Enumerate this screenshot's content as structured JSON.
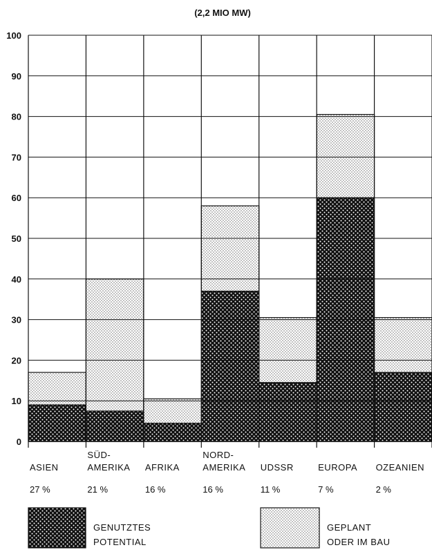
{
  "chart_data": {
    "type": "bar",
    "subtitle": "(2,2 MIO MW)",
    "ylim": [
      0,
      100
    ],
    "y_ticks": [
      0,
      10,
      20,
      30,
      40,
      50,
      60,
      70,
      80,
      90,
      100
    ],
    "grid": true,
    "stacked": true,
    "categories": [
      {
        "name_lines": [
          "ASIEN"
        ],
        "share": "27 %"
      },
      {
        "name_lines": [
          "SÜD-",
          "AMERIKA"
        ],
        "share": "21 %"
      },
      {
        "name_lines": [
          "AFRIKA"
        ],
        "share": "16 %"
      },
      {
        "name_lines": [
          "NORD-",
          "AMERIKA"
        ],
        "share": "16 %"
      },
      {
        "name_lines": [
          "UDSSR"
        ],
        "share": "11 %"
      },
      {
        "name_lines": [
          "EUROPA"
        ],
        "share": "7 %"
      },
      {
        "name_lines": [
          "OZEANIEN"
        ],
        "share": "2 %"
      }
    ],
    "series": [
      {
        "name": "GENUTZTES POTENTIAL",
        "legend_lines": [
          "GENUTZTES",
          "POTENTIAL"
        ],
        "pattern": "dark-dots",
        "values": [
          9,
          7.5,
          4.5,
          37,
          14.5,
          60,
          17
        ]
      },
      {
        "name": "GEPLANT ODER IM BAU",
        "legend_lines": [
          "GEPLANT",
          "ODER IM BAU"
        ],
        "pattern": "light-dots",
        "values": [
          8,
          32.5,
          6,
          21,
          16,
          20.5,
          13.5
        ]
      }
    ],
    "legend_position": "bottom",
    "colors": {
      "ink": "#111111",
      "paper": "#ffffff",
      "light_fill": "#e6e6e6"
    }
  }
}
